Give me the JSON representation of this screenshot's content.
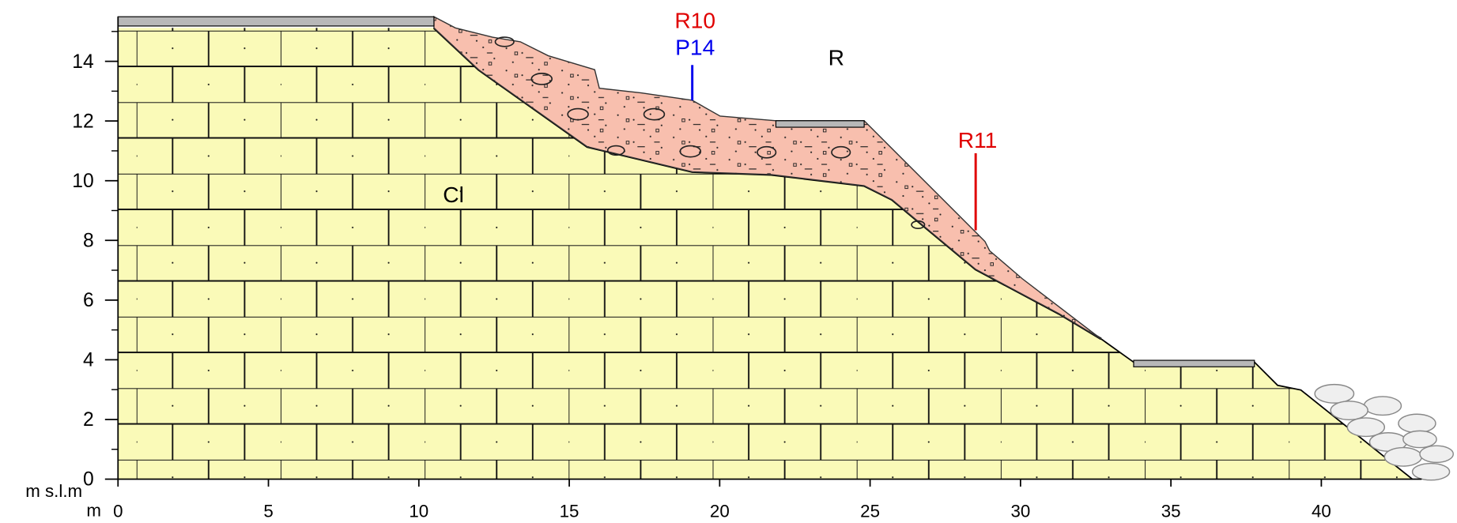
{
  "section": {
    "x_axis": {
      "label": "m",
      "xlim": [
        0,
        44
      ],
      "xticks": [
        0,
        5,
        10,
        15,
        20,
        25,
        30,
        35,
        40
      ]
    },
    "y_axis": {
      "label": "m s.l.m",
      "ylim": [
        0,
        15.5
      ],
      "yticks": [
        0,
        2,
        4,
        6,
        8,
        10,
        12,
        14
      ],
      "minor_ticks": [
        1,
        3,
        5,
        7,
        9,
        11,
        13,
        15
      ]
    },
    "labels": {
      "boring_r10": "R10",
      "probe_p14": "P14",
      "boring_r11": "R11",
      "debris": "R",
      "bedrock": "Cl"
    }
  }
}
